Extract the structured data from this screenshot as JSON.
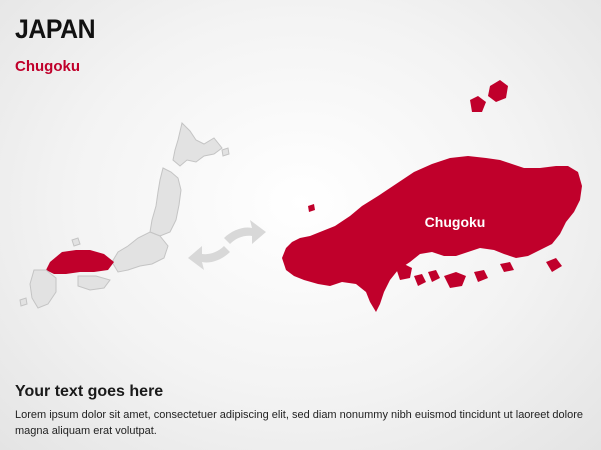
{
  "header": {
    "title": "JAPAN",
    "subtitle": "Chugoku"
  },
  "map": {
    "region_label": "Chugoku",
    "colors": {
      "highlight": "#c0002b",
      "land": "#e2e2e2",
      "land_stroke": "#c4c4c4",
      "arrow": "#d8d8d8"
    }
  },
  "content": {
    "heading": "Your text goes here",
    "body": "Lorem ipsum dolor sit amet, consectetuer adipiscing elit, sed diam nonummy nibh euismod tincidunt ut laoreet dolore magna aliquam erat volutpat."
  }
}
